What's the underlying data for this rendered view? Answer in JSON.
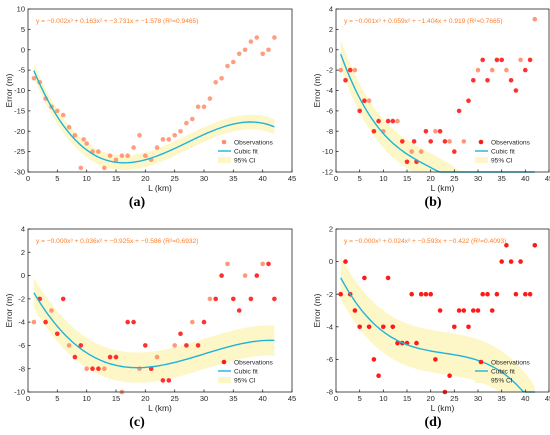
{
  "colors": {
    "observation_pale": "#ff8c69",
    "observation_strong": "#ff1a1a",
    "fit_line": "#1fb3d9",
    "ci_band": "#fdf7c8",
    "axis": "#262626",
    "equation_text": "#ff7f2a"
  },
  "legend": {
    "observations": "Observations",
    "fit": "Cubic fit",
    "ci": "95% CI"
  },
  "chart_data": [
    {
      "type": "scatter",
      "panel_letter": "(a)",
      "equation": "y = −0.002x³ + 0.163x² + −3.731x + −1.578 (R²=0.9465)",
      "xlabel": "L (km)",
      "ylabel": "Error (m)",
      "xlim": [
        0,
        45
      ],
      "ylim": [
        -30,
        10
      ],
      "xticks": [
        0,
        5,
        10,
        15,
        20,
        25,
        30,
        35,
        40,
        45
      ],
      "yticks": [
        -30,
        -25,
        -20,
        -15,
        -10,
        -5,
        0,
        5,
        10
      ],
      "coefficients": [
        -0.002,
        0.163,
        -3.731,
        -1.578
      ],
      "ci_halfwidth": 1.8,
      "legend_position": "lower-right",
      "point_style": "pale",
      "x": [
        1,
        2,
        3,
        4,
        5,
        6,
        7,
        8,
        9,
        9.5,
        10,
        11,
        12,
        13,
        14,
        15,
        16,
        17,
        18,
        19,
        20,
        21,
        22,
        23,
        24,
        25,
        26,
        27,
        28,
        29,
        30,
        31,
        32,
        33,
        34,
        35,
        36,
        37,
        38,
        39,
        40,
        41,
        42
      ],
      "y": [
        -7,
        -8,
        -12,
        -14,
        -15,
        -16,
        -19,
        -21,
        -29,
        -22,
        -23,
        -25,
        -25,
        -29,
        -26,
        -27,
        -26,
        -26,
        -24,
        -21,
        -26,
        -27,
        -24,
        -22,
        -22,
        -21,
        -20,
        -18,
        -17,
        -14,
        -14,
        -12,
        -8,
        -7,
        -4,
        -3,
        -1,
        0,
        2,
        3,
        -1,
        0,
        3
      ]
    },
    {
      "type": "scatter",
      "panel_letter": "(b)",
      "equation": "y = −0.001x³ + 0.059x² + −1.404x + 0.919 (R²=0.7665)",
      "xlabel": "L (km)",
      "ylabel": "Error (m)",
      "xlim": [
        0,
        45
      ],
      "ylim": [
        -12,
        4
      ],
      "xticks": [
        0,
        5,
        10,
        15,
        20,
        25,
        30,
        35,
        40,
        45
      ],
      "yticks": [
        -12,
        -10,
        -8,
        -6,
        -4,
        -2,
        0,
        2,
        4
      ],
      "coefficients": [
        -0.001,
        0.059,
        -1.404,
        0.919
      ],
      "ci_halfwidth": 1.4,
      "legend_position": "lower-right",
      "point_style": "mixed",
      "x": [
        1,
        2,
        3,
        4,
        5,
        6,
        7,
        8,
        9,
        10,
        11,
        12,
        13,
        14,
        15,
        16,
        16.5,
        17,
        18,
        19,
        20,
        21,
        22,
        23,
        24,
        25,
        26,
        27,
        28,
        29,
        30,
        31,
        32,
        33,
        34,
        35,
        36,
        37,
        38,
        39,
        40,
        41,
        42
      ],
      "y": [
        -2,
        -3,
        -2,
        -2,
        -6,
        -5,
        -5,
        -8,
        -7,
        -8,
        -7,
        -7,
        -7,
        -9,
        -11,
        -10,
        -9,
        -11,
        -10,
        -8,
        -9,
        -8,
        -8,
        -9,
        -9,
        -10,
        -6,
        -9,
        -5,
        -3,
        -2,
        -1,
        -3,
        -2,
        -1,
        -1,
        -2,
        -3,
        -4,
        -1,
        -2,
        -1,
        3
      ]
    },
    {
      "type": "scatter",
      "panel_letter": "(c)",
      "equation": "y = −0.000x³ + 0.036x² + −0.925x + −0.586 (R²=0.6932)",
      "xlabel": "L (km)",
      "ylabel": "Error (m)",
      "xlim": [
        0,
        45
      ],
      "ylim": [
        -10,
        4
      ],
      "xticks": [
        0,
        5,
        10,
        15,
        20,
        25,
        30,
        35,
        40,
        45
      ],
      "yticks": [
        -10,
        -8,
        -6,
        -4,
        -2,
        0,
        2,
        4
      ],
      "coefficients": [
        -0.0004,
        0.036,
        -0.925,
        -0.586
      ],
      "ci_halfwidth": 1.3,
      "legend_position": "lower-right",
      "point_style": "mixed",
      "x": [
        1,
        2,
        3,
        4,
        5,
        6,
        7,
        8,
        9,
        10,
        11,
        12,
        13,
        14,
        15,
        16,
        17,
        18,
        19,
        20,
        21,
        22,
        23,
        24,
        25,
        26,
        27,
        28,
        29,
        30,
        31,
        32,
        33,
        34,
        35,
        36,
        37,
        38,
        39,
        40,
        41,
        42
      ],
      "y": [
        -4,
        -2,
        -4,
        -3,
        -5,
        -2,
        -6,
        -7,
        -6,
        -8,
        -8,
        -8,
        -8,
        -7,
        -7,
        -10,
        -4,
        -4,
        -8,
        -6,
        -8,
        -7,
        -9,
        -9,
        -6,
        -5,
        -6,
        -4,
        -6,
        -4,
        -2,
        -2,
        0,
        1,
        -2,
        -3,
        0,
        -2,
        0,
        1,
        1,
        -2
      ]
    },
    {
      "type": "scatter",
      "panel_letter": "(d)",
      "equation": "y = −0.000x³ + 0.024x² + −0.593x + −0.422 (R²=0.4093)",
      "xlabel": "L (km)",
      "ylabel": "Error (m)",
      "xlim": [
        0,
        45
      ],
      "ylim": [
        -8,
        2
      ],
      "xticks": [
        0,
        5,
        10,
        15,
        20,
        25,
        30,
        35,
        40,
        45
      ],
      "yticks": [
        -8,
        -6,
        -4,
        -2,
        0,
        2
      ],
      "coefficients": [
        -0.00035,
        0.024,
        -0.593,
        -0.422
      ],
      "ci_halfwidth": 1.3,
      "legend_position": "lower-right",
      "point_style": "strong",
      "x": [
        1,
        2,
        3,
        4,
        5,
        6,
        7,
        8,
        9,
        10,
        11,
        12,
        13,
        14,
        15,
        16,
        17,
        18,
        19,
        20,
        21,
        22,
        23,
        24,
        25,
        26,
        27,
        28,
        29,
        30,
        31,
        32,
        33,
        34,
        35,
        36,
        37,
        38,
        39,
        40,
        41,
        42
      ],
      "y": [
        -2,
        0,
        -2,
        -3,
        -4,
        -1,
        -4,
        -6,
        -7,
        -4,
        -1,
        -4,
        -5,
        -5,
        -5,
        -2,
        -5,
        -2,
        -2,
        -2,
        -6,
        -3,
        -8,
        -7,
        -4,
        -3,
        -3,
        -4,
        -3,
        -3,
        -2,
        -2,
        -3,
        -2,
        0,
        1,
        0,
        -2,
        0,
        -2,
        -2,
        1
      ]
    }
  ]
}
